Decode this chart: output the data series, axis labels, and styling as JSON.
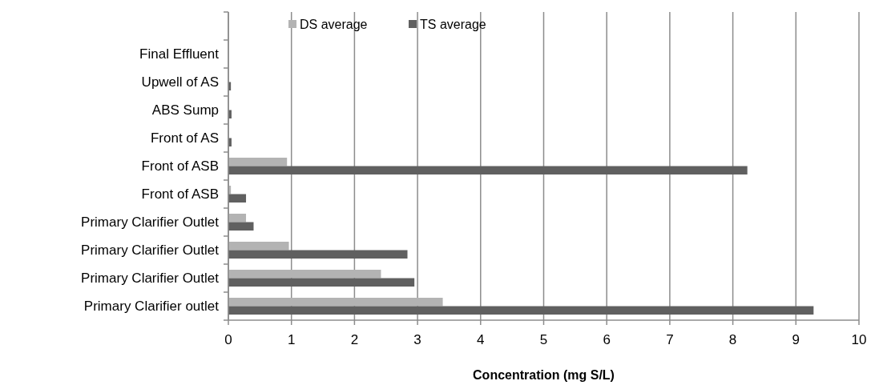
{
  "chart_data": {
    "type": "bar",
    "orientation": "horizontal",
    "xlabel": "Concentration (mg S/L)",
    "categories": [
      null,
      "Final Effluent",
      "Upwell of AS",
      "ABS Sump",
      "Front of AS",
      "Front of ASB",
      "Front of ASB",
      "Primary Clarifier Outlet",
      "Primary Clarifier Outlet",
      "Primary Clarifier Outlet",
      "Primary Clarifier outlet"
    ],
    "series": [
      {
        "name": "DS average",
        "color": "#b3b3b3",
        "values": [
          null,
          null,
          null,
          null,
          null,
          0.93,
          0.04,
          0.28,
          0.96,
          2.42,
          3.4
        ]
      },
      {
        "name": "TS average",
        "color": "#606060",
        "values": [
          null,
          null,
          0.04,
          0.05,
          0.05,
          8.23,
          0.28,
          0.4,
          2.84,
          2.95,
          9.28
        ]
      }
    ],
    "xlim": [
      0,
      10
    ],
    "xticks": [
      0,
      1,
      2,
      3,
      4,
      5,
      6,
      7,
      8,
      9,
      10
    ],
    "grid": "x",
    "legend": "top"
  }
}
